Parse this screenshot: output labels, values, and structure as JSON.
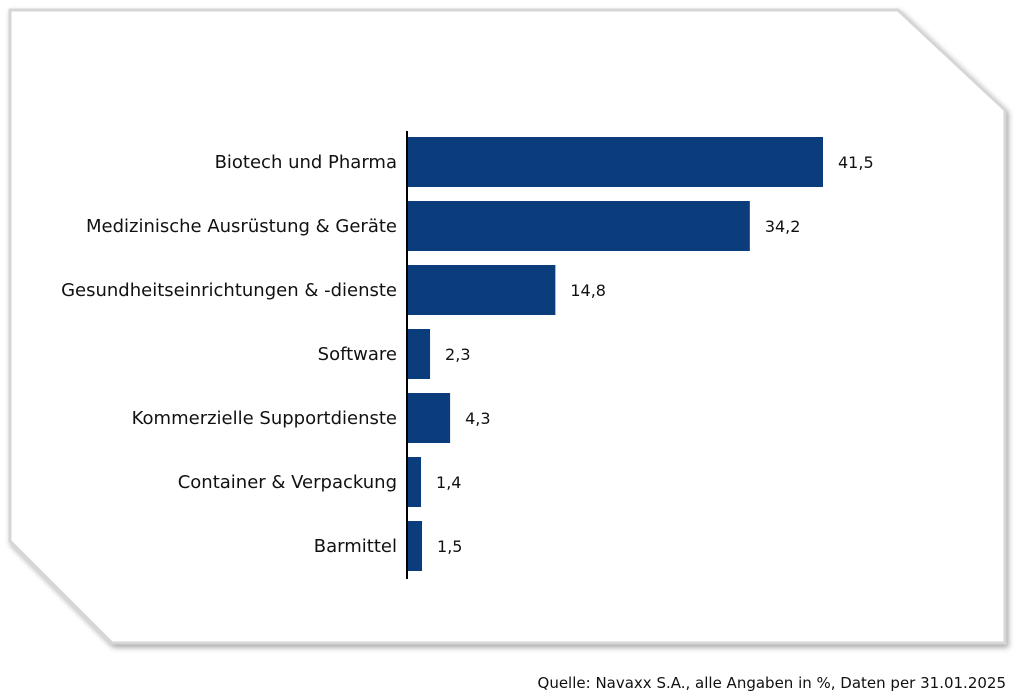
{
  "chart_data": {
    "type": "bar",
    "orientation": "horizontal",
    "categories": [
      "Biotech und Pharma",
      "Medizinische Ausrüstung & Geräte",
      "Gesundheitseinrichtungen & -dienste",
      "Software",
      "Kommerzielle Supportdienste",
      "Container & Verpackung",
      "Barmittel"
    ],
    "values": [
      41.5,
      34.2,
      14.8,
      2.3,
      4.3,
      1.4,
      1.5
    ],
    "value_labels": [
      "41,5",
      "34,2",
      "14,8",
      "2,3",
      "4,3",
      "1,4",
      "1,5"
    ],
    "xlim": [
      0,
      50
    ],
    "grid": false,
    "legend": "none",
    "bar_color": "#0b3c7c"
  },
  "source_note": "Quelle: Navaxx S.A., alle Angaben in %, Daten per 31.01.2025"
}
